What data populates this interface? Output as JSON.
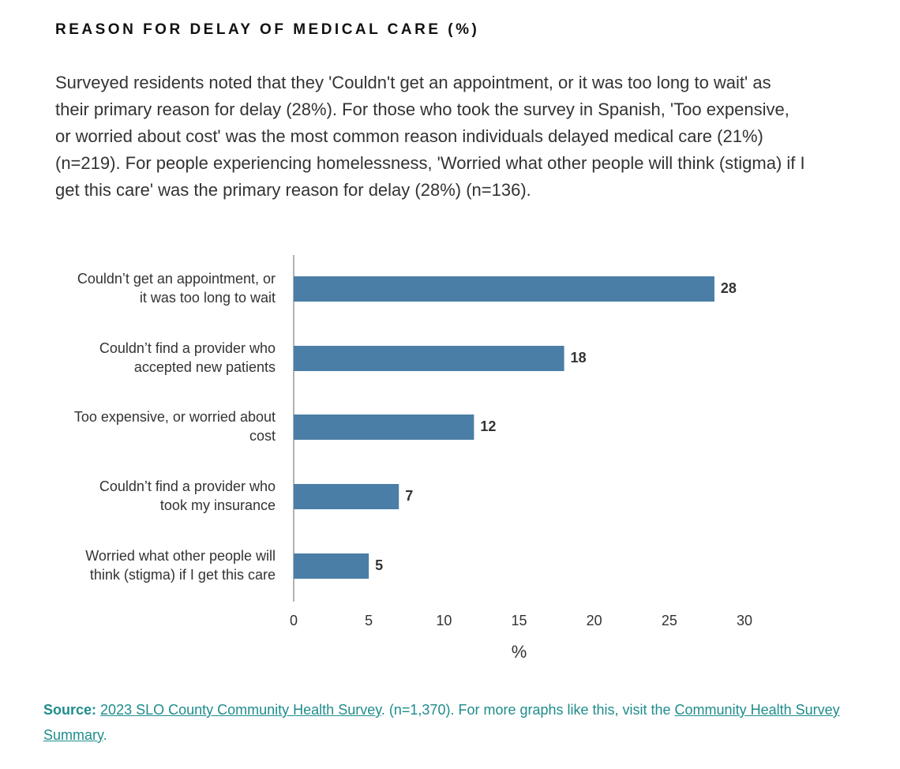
{
  "chart_data": {
    "type": "barh",
    "title": "REASON FOR DELAY OF MEDICAL CARE (%)",
    "subtitle": "Surveyed residents noted that they 'Couldn't get an appointment, or it was too long to wait' as their primary reason for delay (28%). For those who took the survey in Spanish, 'Too expensive, or worried about cost' was the most common reason individuals delayed medical care (21%) (n=219). For people experiencing homelessness, 'Worried what other people will think (stigma) if I get this care' was the primary reason for delay (28%) (n=136).",
    "categories": [
      "Couldn’t get an appointment, or it was too long to wait",
      "Couldn’t find a provider who accepted new patients",
      "Too expensive, or worried about cost",
      "Couldn’t find a provider who took my insurance",
      "Worried what other people will think (stigma) if I get this care"
    ],
    "values": [
      28,
      18,
      12,
      7,
      5
    ],
    "color": "#4a7ea6",
    "xlim": [
      0,
      30
    ],
    "xticks": [
      0,
      5,
      10,
      15,
      20,
      25,
      30
    ],
    "x_label": "%",
    "footer": {
      "source_label": "Source:",
      "source_link": "2023 SLO County Community Health Survey",
      "text": ". (n=1,370). For more graphs like this, visit the ",
      "summary_link": "Community Health Survey Summary",
      "end": "."
    }
  }
}
